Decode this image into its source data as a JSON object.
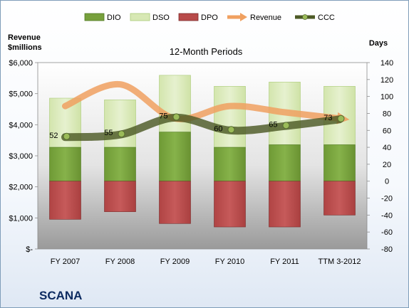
{
  "company": "SCANA",
  "chart_data": {
    "type": "bar",
    "title": "12-Month Periods",
    "left_axis_label": [
      "Revenue",
      "$millions"
    ],
    "right_axis_label": "Days",
    "categories": [
      "FY 2007",
      "FY 2008",
      "FY 2009",
      "FY 2010",
      "FY 2011",
      "TTM 3-2012"
    ],
    "left_axis": {
      "range": [
        0,
        6000
      ],
      "ticks": [
        0,
        1000,
        2000,
        3000,
        4000,
        5000,
        6000
      ],
      "tick_labels": [
        "$-",
        "$1,000",
        "$2,000",
        "$3,000",
        "$4,000",
        "$5,000",
        "$6,000"
      ]
    },
    "right_axis": {
      "range": [
        -80,
        140
      ],
      "ticks": [
        -80,
        -60,
        -40,
        -20,
        0,
        20,
        40,
        60,
        80,
        100,
        120,
        140
      ],
      "tick_labels": [
        "-80",
        "-60",
        "-40",
        "-20",
        "0",
        "20",
        "40",
        "60",
        "80",
        "100",
        "120",
        "140"
      ]
    },
    "series": [
      {
        "name": "DIO",
        "axis": "right",
        "kind": "stacked-bar",
        "color": "#77a03c",
        "values": [
          40,
          40,
          58,
          40,
          43,
          43
        ]
      },
      {
        "name": "DSO",
        "axis": "right",
        "kind": "stacked-bar",
        "color": "#d7e8b4",
        "values": [
          98,
          96,
          125,
          112,
          117,
          112
        ]
      },
      {
        "name": "DPO",
        "axis": "right",
        "kind": "negative-bar",
        "color": "#b84a4a",
        "values": [
          -45,
          -36,
          -50,
          -54,
          -54,
          -40
        ]
      },
      {
        "name": "Revenue",
        "axis": "left",
        "kind": "line",
        "color": "#f0a060",
        "values": [
          4600,
          5300,
          4200,
          4600,
          4400,
          4200
        ]
      },
      {
        "name": "CCC",
        "axis": "right",
        "kind": "line",
        "color": "#4a5a2a",
        "values": [
          52,
          55,
          75,
          60,
          65,
          73
        ],
        "labels": [
          "52",
          "55",
          "75",
          "60",
          "65",
          "73"
        ]
      }
    ],
    "legend_position": "top",
    "grid": false
  }
}
